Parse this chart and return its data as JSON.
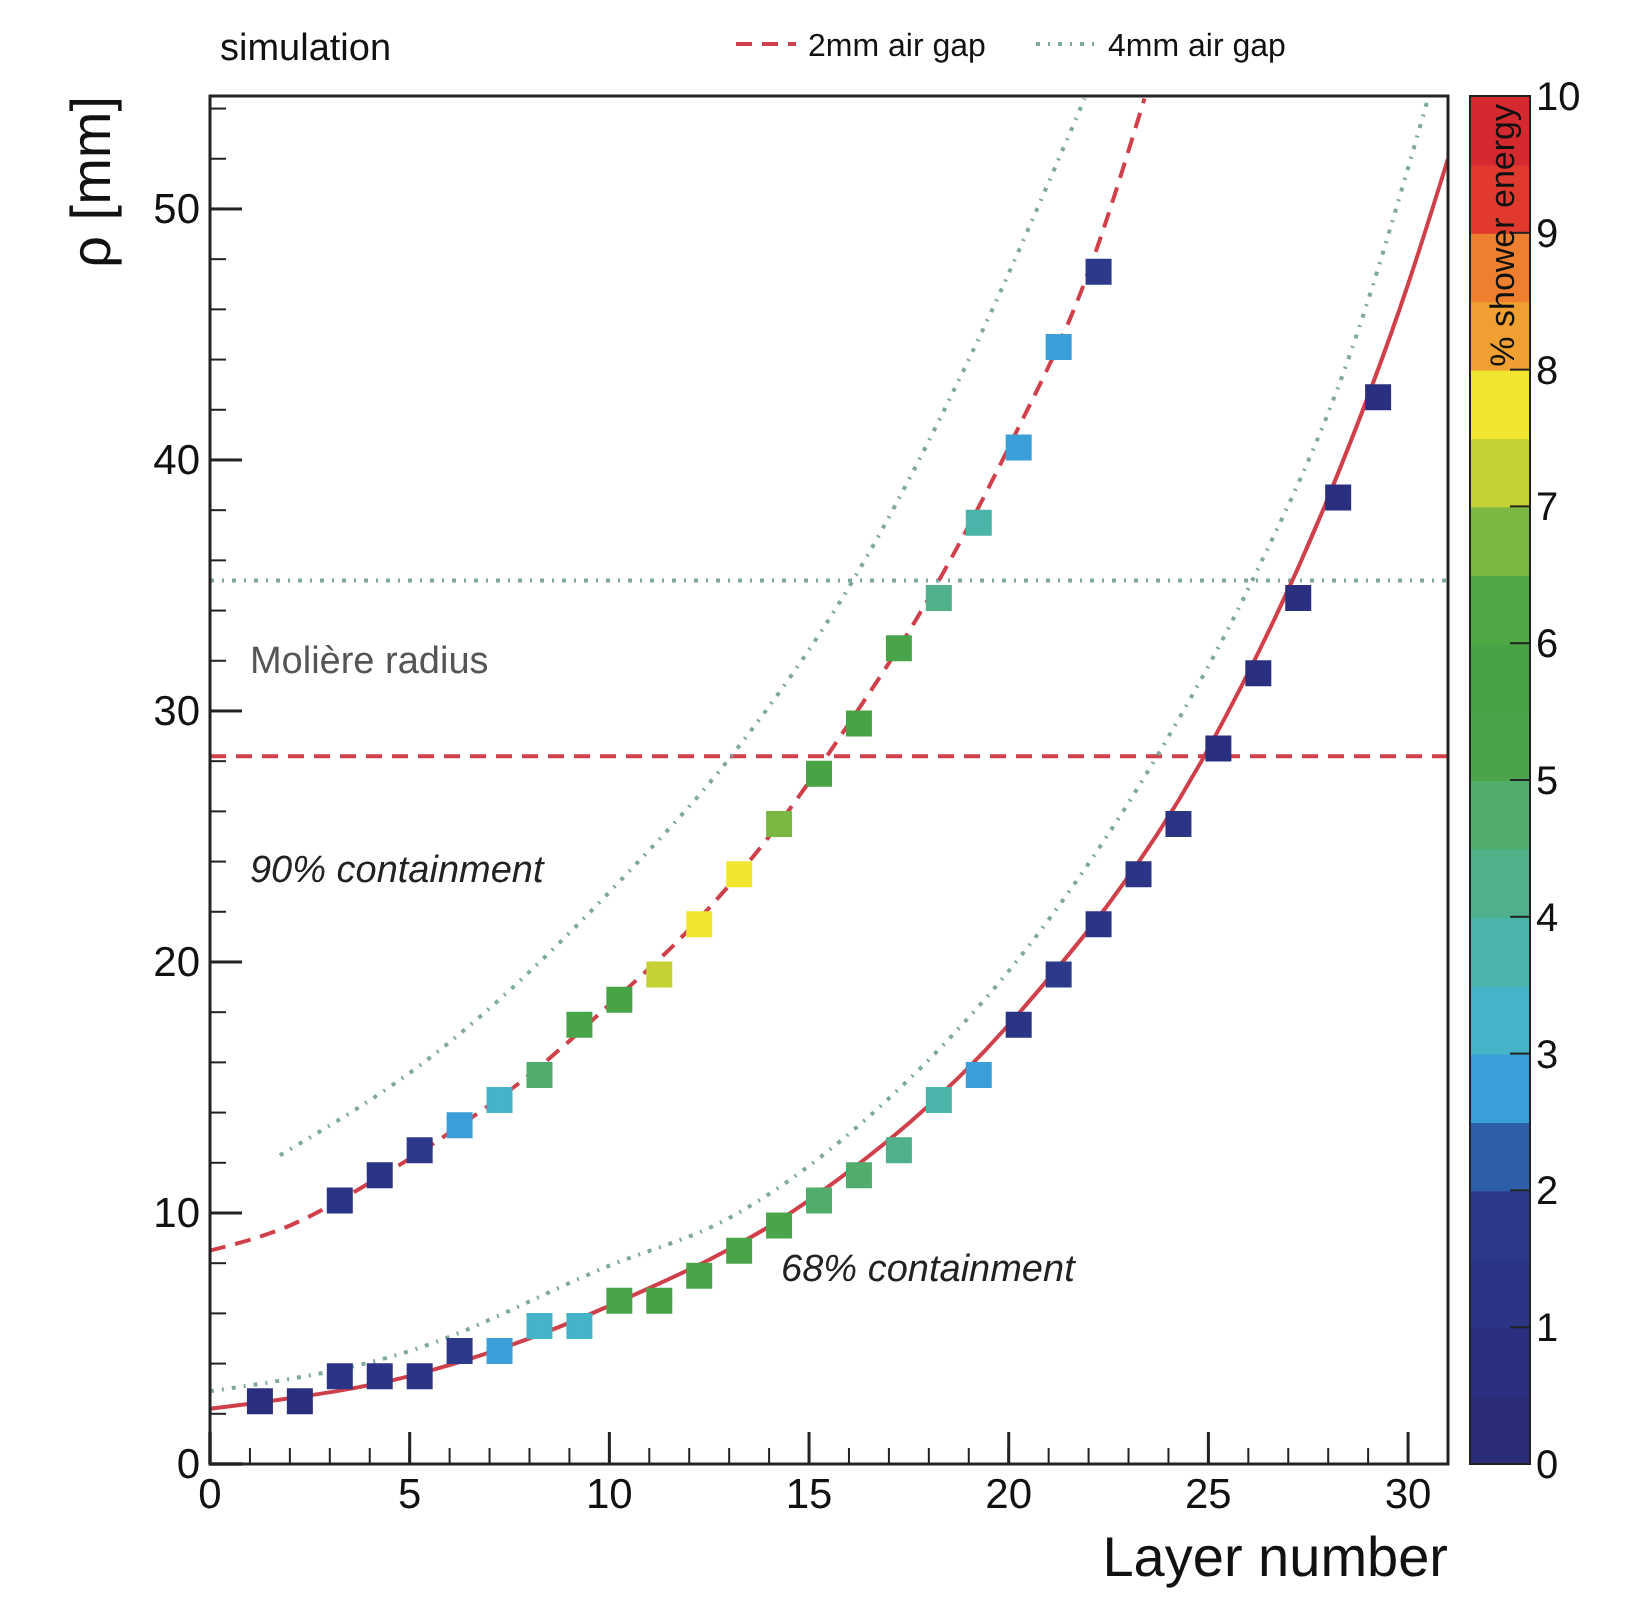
{
  "chart_data": {
    "type": "scatter",
    "title": "simulation",
    "xlabel": "Layer number",
    "ylabel": "ρ [mm]",
    "clabel": "% shower energy",
    "xlim": [
      0,
      31
    ],
    "ylim": [
      0,
      54.5
    ],
    "xticks": [
      0,
      5,
      10,
      15,
      20,
      25,
      30
    ],
    "yticks": [
      0,
      10,
      20,
      30,
      40,
      50
    ],
    "clim": [
      0,
      10
    ],
    "cticks": [
      0,
      1,
      2,
      3,
      4,
      5,
      6,
      7,
      8,
      9,
      10
    ],
    "marker": "square",
    "legend": "top",
    "grid": false,
    "series": [
      {
        "x": [
          3.25,
          4.25,
          5.25,
          6.25,
          7.25,
          8.25,
          9.25,
          10.25,
          11.25,
          12.25,
          13.25,
          14.25,
          15.25,
          16.25,
          17.25,
          18.25,
          19.25,
          20.25,
          21.25,
          22.25
        ],
        "values": [
          10.5,
          11.5,
          12.5,
          13.5,
          14.5,
          15.5,
          17.5,
          18.5,
          19.5,
          21.5,
          23.5,
          25.5,
          27.5,
          29.5,
          32.5,
          34.5,
          37.5,
          40.5,
          44.5,
          47.5
        ],
        "cvalues": [
          1,
          1,
          1.5,
          2.7,
          3.2,
          4.5,
          5,
          5.5,
          7.3,
          7.5,
          7.5,
          6.5,
          5.5,
          5.5,
          5,
          4,
          3.5,
          2.8,
          2.7,
          1.5
        ],
        "colors": [
          "#2c3486",
          "#2c3486",
          "#2d3a8c",
          "#3a9fd8",
          "#45b3c8",
          "#50ad6b",
          "#4aa54a",
          "#48a345",
          "#c5d135",
          "#f2e530",
          "#f2e530",
          "#7ab842",
          "#48a345",
          "#48a345",
          "#4aa54a",
          "#4fb08a",
          "#4bb4a8",
          "#3a9fd8",
          "#3a9fd8",
          "#2d3a8c"
        ]
      },
      {
        "x": [
          1.25,
          2.25,
          3.25,
          4.25,
          5.25,
          6.25,
          7.25,
          8.25,
          9.25,
          10.25,
          11.25,
          12.25,
          13.25,
          14.25,
          15.25,
          16.25,
          17.25,
          18.25,
          19.25,
          20.25,
          21.25,
          22.25,
          23.25,
          24.25,
          25.25,
          26.25,
          27.25,
          28.25,
          29.25
        ],
        "values": [
          2.5,
          2.5,
          3.5,
          3.5,
          3.5,
          4.5,
          4.5,
          5.5,
          5.5,
          6.5,
          6.5,
          7.5,
          8.5,
          9.5,
          10.5,
          11.5,
          12.5,
          14.5,
          15.5,
          17.5,
          19.5,
          21.5,
          23.5,
          25.5,
          28.5,
          31.5,
          34.5,
          38.5,
          42.5
        ],
        "cvalues": [
          0.7,
          0.7,
          1,
          1,
          1,
          1.5,
          2.7,
          3.3,
          3.3,
          5,
          5.5,
          5,
          5,
          5,
          4.8,
          4.5,
          4,
          3.5,
          2.8,
          1,
          1.8,
          1,
          1,
          1,
          0.8,
          0.8,
          0.8,
          0.8,
          0.8
        ],
        "colors": [
          "#2b2f80",
          "#2b2f80",
          "#2c3486",
          "#2c3486",
          "#2c3486",
          "#2d3a8c",
          "#3a9fd8",
          "#45b3c8",
          "#45b3c8",
          "#4aa54a",
          "#48a345",
          "#4aa54a",
          "#4aa54a",
          "#4aa54a",
          "#50ad6b",
          "#50ad6b",
          "#4fb08a",
          "#4bb4a8",
          "#3a9fd8",
          "#2c3486",
          "#2d3a8c",
          "#2c3486",
          "#2c3486",
          "#2c3486",
          "#2b2f80",
          "#2b2f80",
          "#2b2f80",
          "#2b2f80",
          "#2b2f80"
        ]
      },
      {
        "type": "line",
        "name": "2mm air gap",
        "color": "#d0404a",
        "line_style": "dashed",
        "marker": "none",
        "x": [
          0,
          2,
          4,
          6,
          8,
          10,
          12,
          14,
          16,
          18,
          20,
          22,
          23.4
        ],
        "values": [
          8.5,
          9.5,
          11.2,
          13.2,
          15.5,
          18.3,
          21.3,
          25,
          29.5,
          34.5,
          40.5,
          47.5,
          54.4
        ]
      },
      {
        "type": "line",
        "name": "4mm air gap",
        "color": "#7fa8a0",
        "line_style": "dotted",
        "marker": "none",
        "x": [
          1.75,
          5.6,
          10.25,
          13.1,
          16.1,
          19,
          21.9
        ],
        "values": [
          12.3,
          16.3,
          23.2,
          28.3,
          35.2,
          44,
          54.4
        ]
      },
      {
        "type": "line",
        "color": "#d0404a",
        "line_style": "solid",
        "marker": "none",
        "x": [
          0,
          1,
          5,
          10,
          15,
          20,
          25,
          28,
          30,
          31
        ],
        "values": [
          2.2,
          2.4,
          3.5,
          6.3,
          10.5,
          17.5,
          28.5,
          38.5,
          47,
          52
        ]
      },
      {
        "type": "line",
        "color": "#7fa8a0",
        "line_style": "dotted",
        "marker": "none",
        "x": [
          0,
          5,
          10,
          13,
          16.75,
          21.1,
          23.75,
          26.1,
          28.5,
          30.5
        ],
        "values": [
          2.9,
          4.5,
          7.9,
          9.8,
          14.2,
          21.9,
          28.3,
          35.2,
          44,
          54.4
        ]
      }
    ],
    "ref_lines": [
      {
        "axis": "y",
        "value": 35.2,
        "color": "#7fa8a0",
        "line_style": "dotted"
      },
      {
        "axis": "y",
        "value": 28.2,
        "color": "#d0404a",
        "line_style": "dashed"
      }
    ],
    "annotations": [
      "Molière radius",
      "90% containment",
      "68% containment"
    ]
  }
}
